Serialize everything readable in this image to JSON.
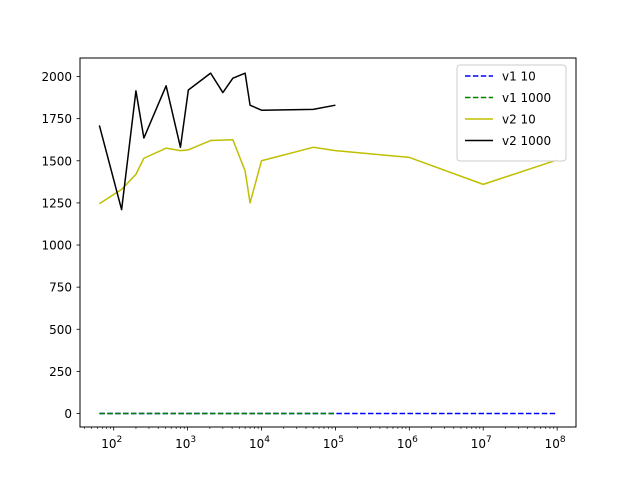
{
  "chart_data": {
    "type": "line",
    "x_scale": "log",
    "xlim": [
      35,
      180000000
    ],
    "ylim": [
      -80,
      2110
    ],
    "x_ticks": [
      {
        "value": 100,
        "base": "10",
        "exp": "2"
      },
      {
        "value": 1000,
        "base": "10",
        "exp": "3"
      },
      {
        "value": 10000,
        "base": "10",
        "exp": "4"
      },
      {
        "value": 100000,
        "base": "10",
        "exp": "5"
      },
      {
        "value": 1000000,
        "base": "10",
        "exp": "6"
      },
      {
        "value": 10000000,
        "base": "10",
        "exp": "7"
      },
      {
        "value": 100000000,
        "base": "10",
        "exp": "8"
      }
    ],
    "y_ticks": [
      0,
      250,
      500,
      750,
      1000,
      1250,
      1500,
      1750,
      2000
    ],
    "grid": false,
    "legend_position": "top-right",
    "series": [
      {
        "name": "v1 10",
        "color": "#0000ff",
        "style": "dashed",
        "x": [
          64,
          100000000
        ],
        "y": [
          0,
          0
        ]
      },
      {
        "name": "v1 1000",
        "color": "#008000",
        "style": "dashed",
        "x": [
          64,
          100000
        ],
        "y": [
          0,
          0
        ]
      },
      {
        "name": "v2 10",
        "color": "#bfbf00",
        "style": "solid",
        "x": [
          64,
          128,
          200,
          256,
          512,
          800,
          1024,
          2048,
          4096,
          6000,
          7000,
          10000,
          50000,
          100000,
          1000000,
          10000000,
          100000000
        ],
        "y": [
          1245,
          1330,
          1420,
          1515,
          1575,
          1560,
          1565,
          1620,
          1625,
          1440,
          1250,
          1500,
          1580,
          1560,
          1520,
          1360,
          1505
        ]
      },
      {
        "name": "v2 1000",
        "color": "#000000",
        "style": "solid",
        "x": [
          64,
          128,
          200,
          256,
          512,
          800,
          1024,
          2048,
          3000,
          4096,
          6000,
          7000,
          10000,
          50000,
          100000
        ],
        "y": [
          1710,
          1210,
          1915,
          1635,
          1945,
          1580,
          1920,
          2020,
          1905,
          1990,
          2020,
          1830,
          1800,
          1805,
          1830
        ]
      }
    ]
  }
}
